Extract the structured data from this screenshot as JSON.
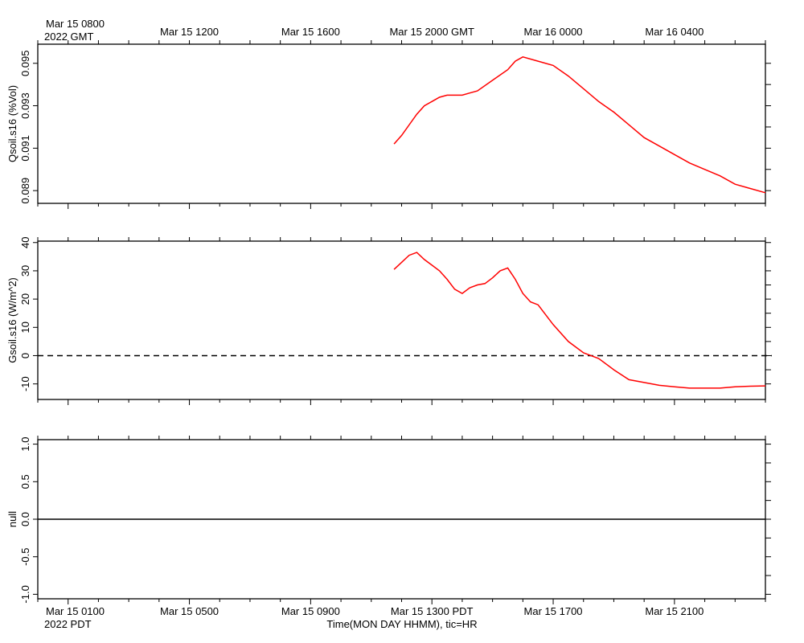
{
  "header": {
    "gmt_first_tick": "Mar 15 0800",
    "gmt_year": "2022 GMT",
    "gmt_ticks": [
      "Mar 15 1200",
      "Mar 15 1600",
      "Mar 15 2000 GMT",
      "Mar 16 0000",
      "Mar 16 0400"
    ]
  },
  "footer": {
    "pdt_first_tick": "Mar 15 0100",
    "pdt_year": "2022 PDT",
    "pdt_ticks": [
      "Mar 15 0500",
      "Mar 15 0900",
      "Mar 15 1300 PDT",
      "Mar 15 1700",
      "Mar 15 2100"
    ],
    "xlabel": "Time(MON DAY HHMM), tic=HR"
  },
  "colors": {
    "series": "#ff0000",
    "axis": "#000000",
    "zero_line": "#000000"
  },
  "chart_data": [
    {
      "type": "line",
      "ylabel": "Qsoil.s16 (%Vol)",
      "x_units": "hours since Mar 15 0000 PDT",
      "xlim": [
        0.0,
        24.0
      ],
      "ylim": [
        0.0884,
        0.0959
      ],
      "yticks": [
        0.089,
        0.091,
        0.093,
        0.095
      ],
      "ytick_labels": [
        "0.089",
        "0.091",
        "0.093",
        "0.095"
      ],
      "series": [
        {
          "x": [
            11.75,
            12.0,
            12.5,
            12.75,
            13.0,
            13.25,
            13.5,
            13.75,
            14.0,
            14.25,
            14.5,
            15.0,
            15.5,
            15.75,
            16.0,
            16.5,
            17.0,
            17.5,
            18.0,
            18.5,
            19.0,
            19.5,
            20.0,
            20.5,
            21.0,
            21.5,
            22.0,
            22.5,
            23.0,
            23.5,
            24.0
          ],
          "values": [
            0.0912,
            0.0916,
            0.0926,
            0.093,
            0.0932,
            0.0934,
            0.0935,
            0.0935,
            0.0935,
            0.0936,
            0.0937,
            0.0942,
            0.0947,
            0.0951,
            0.0953,
            0.0951,
            0.0949,
            0.0944,
            0.0938,
            0.0932,
            0.0927,
            0.0921,
            0.0915,
            0.0911,
            0.0907,
            0.0903,
            0.09,
            0.0897,
            0.0893,
            0.0891,
            0.0889
          ]
        }
      ]
    },
    {
      "type": "line",
      "ylabel": "Gsoil.s16 (W/m^2)",
      "x_units": "hours since Mar 15 0000 PDT",
      "xlim": [
        0.0,
        24.0
      ],
      "ylim": [
        -15.5,
        40.5
      ],
      "yticks": [
        -10,
        0,
        10,
        20,
        30,
        40
      ],
      "ytick_labels": [
        "-10",
        "0",
        "10",
        "20",
        "30",
        "40"
      ],
      "reference_line": {
        "y": 0,
        "style": "dashed"
      },
      "series": [
        {
          "x": [
            11.75,
            12.0,
            12.25,
            12.5,
            12.75,
            13.0,
            13.25,
            13.5,
            13.75,
            14.0,
            14.25,
            14.5,
            14.75,
            15.0,
            15.25,
            15.5,
            15.75,
            16.0,
            16.25,
            16.5,
            17.0,
            17.5,
            18.0,
            18.5,
            19.0,
            19.5,
            20.0,
            20.5,
            21.0,
            21.5,
            22.0,
            22.5,
            23.0,
            23.5,
            24.0
          ],
          "values": [
            30.5,
            33.0,
            35.5,
            36.5,
            34.0,
            32.0,
            30.0,
            27.0,
            23.5,
            22.0,
            24.0,
            25.0,
            25.5,
            27.5,
            30.0,
            31.0,
            27.0,
            22.0,
            19.0,
            18.0,
            11.0,
            5.0,
            1.0,
            -1.0,
            -5.0,
            -8.5,
            -9.5,
            -10.5,
            -11.0,
            -11.5,
            -11.5,
            -11.5,
            -11.0,
            -10.8,
            -10.7
          ]
        }
      ]
    },
    {
      "type": "line",
      "ylabel": "null",
      "x_units": "hours since Mar 15 0000 PDT",
      "xlim": [
        0.0,
        24.0
      ],
      "ylim": [
        -1.06,
        1.06
      ],
      "yticks": [
        -1.0,
        -0.5,
        0.0,
        0.5,
        1.0
      ],
      "ytick_labels": [
        "-1.0",
        "-0.5",
        "0.0",
        "0.5",
        "1.0"
      ],
      "series": [
        {
          "x": [
            0.0,
            24.0
          ],
          "values": [
            0.0,
            0.0
          ]
        }
      ]
    }
  ]
}
